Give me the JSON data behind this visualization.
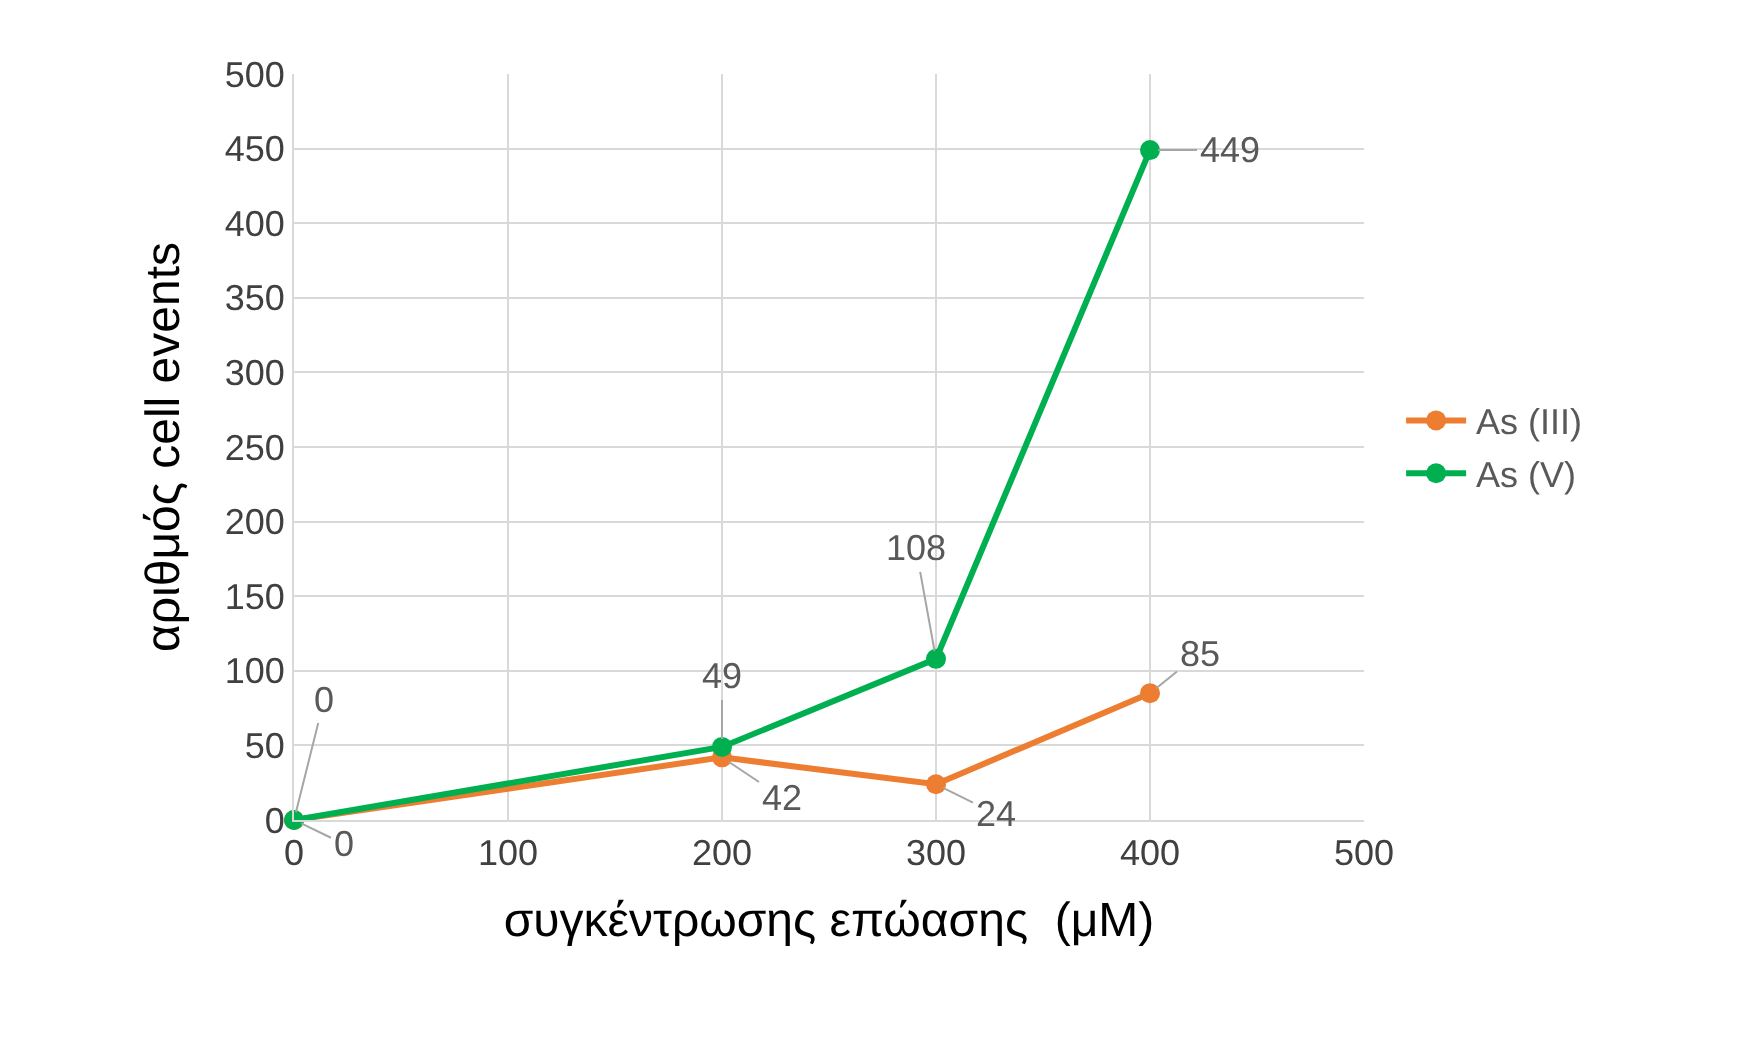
{
  "chart_data": {
    "type": "line",
    "xlabel": "συγκέντρωσης επώασης  (μM)",
    "ylabel": "αριθμός cell events",
    "x": [
      0,
      200,
      300,
      400
    ],
    "series": [
      {
        "name": "As (III)",
        "color": "#ed7d31",
        "values": [
          0,
          42,
          24,
          85
        ]
      },
      {
        "name": "As (V)",
        "color": "#00b050",
        "values": [
          0,
          49,
          108,
          449
        ]
      }
    ],
    "xlim": [
      0,
      500
    ],
    "xticks": [
      0,
      100,
      200,
      300,
      400,
      500
    ],
    "ylim": [
      0,
      500
    ],
    "yticks": [
      0,
      50,
      100,
      150,
      200,
      250,
      300,
      350,
      400,
      450,
      500
    ],
    "grid": true,
    "legend": "right",
    "marker": "circle",
    "line_style": "solid",
    "data_labels": true
  }
}
